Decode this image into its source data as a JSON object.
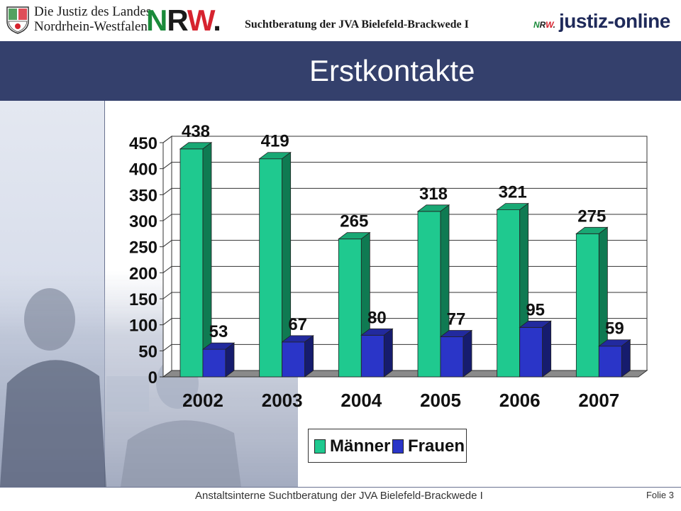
{
  "header": {
    "justiz_line1": "Die Justiz des Landes",
    "justiz_line2": "Nordrhein-Westfalen",
    "nrw_logo": "NRW.",
    "title": "Suchtberatung der  JVA Bielefeld-Brackwede I",
    "justiz_online_prefix": "NRW.",
    "justiz_online": "justiz-online"
  },
  "slide": {
    "title": "Erstkontakte"
  },
  "footer": {
    "text": "Anstaltsinterne Suchtberatung der JVA Bielefeld-Brackwede I",
    "folie": "Folie 3"
  },
  "colors": {
    "title_band": "#34406c",
    "maenner": "#1fc98f",
    "frauen": "#2a35c8",
    "nrw_red": "#d6232f",
    "nrw_green": "#1a8a3a"
  },
  "chart_data": {
    "type": "bar",
    "title": "",
    "xlabel": "",
    "ylabel": "",
    "categories": [
      "2002",
      "2003",
      "2004",
      "2005",
      "2006",
      "2007"
    ],
    "series": [
      {
        "name": "Männer",
        "values": [
          438,
          419,
          265,
          318,
          321,
          275
        ]
      },
      {
        "name": "Frauen",
        "values": [
          53,
          67,
          80,
          77,
          95,
          59
        ]
      }
    ],
    "ylim": [
      0,
      450
    ],
    "yticks": [
      0,
      50,
      100,
      150,
      200,
      250,
      300,
      350,
      400,
      450
    ],
    "grid": true,
    "legend_position": "bottom",
    "style": "3d"
  }
}
